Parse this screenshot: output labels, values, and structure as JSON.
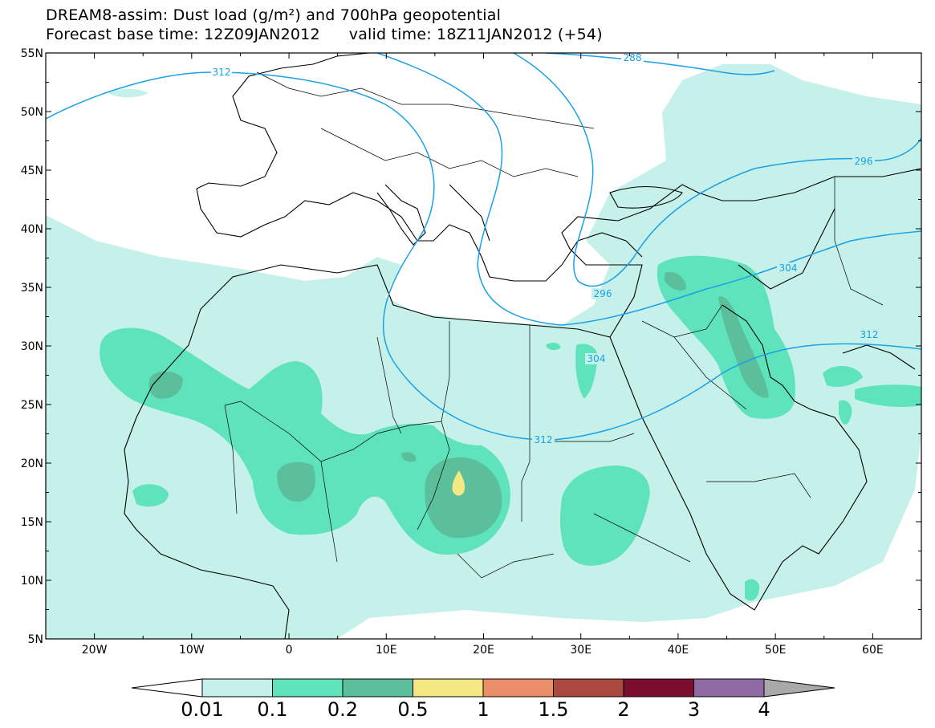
{
  "title": {
    "line1": "DREAM8-assim: Dust load (g/m²) and 700hPa geopotential",
    "base_time": "Forecast base time: 12Z09JAN2012",
    "valid_time": "valid time: 18Z11JAN2012 (+54)"
  },
  "map": {
    "lat_labels": [
      "55N",
      "50N",
      "45N",
      "40N",
      "35N",
      "30N",
      "25N",
      "20N",
      "15N",
      "10N",
      "5N"
    ],
    "lon_labels": [
      "20W",
      "10W",
      "0",
      "10E",
      "20E",
      "30E",
      "40E",
      "50E",
      "60E"
    ],
    "contour_labels": [
      "312",
      "288",
      "296",
      "304",
      "312",
      "296",
      "304",
      "312"
    ]
  },
  "colorbar": {
    "ticks": [
      "0.01",
      "0.1",
      "0.2",
      "0.5",
      "1",
      "1.5",
      "2",
      "3",
      "4"
    ],
    "colors": [
      "#c6f1ea",
      "#5fe3bc",
      "#5bbf9b",
      "#f3e882",
      "#ec8f69",
      "#a9493f",
      "#7b0e2e",
      "#8f6aa3",
      "#a9a9a9"
    ]
  },
  "colors": {
    "dust_light": "#c6f1ea",
    "dust_mid": "#5fe3bc",
    "dust_dark": "#5bbf9b",
    "dust_yellow": "#f3e882",
    "contour": "#1aa0e6"
  }
}
